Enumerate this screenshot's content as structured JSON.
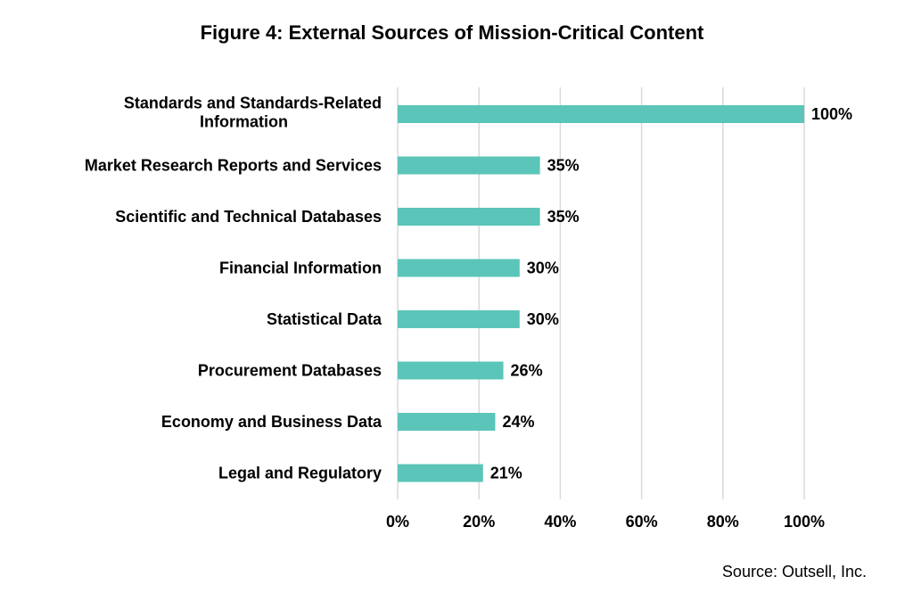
{
  "chart_data": {
    "type": "bar",
    "orientation": "horizontal",
    "title": "Figure 4: External Sources of Mission-Critical Content",
    "categories": [
      "Standards and Standards-Related Information",
      "Market Research Reports and Services",
      "Scientific and Technical Databases",
      "Financial Information",
      "Statistical Data",
      "Procurement Databases",
      "Economy and Business Data",
      "Legal and Regulatory"
    ],
    "category_lines": [
      [
        "Standards and Standards-Related",
        "Information"
      ],
      [
        "Market Research Reports and Services"
      ],
      [
        "Scientific and Technical Databases"
      ],
      [
        "Financial Information"
      ],
      [
        "Statistical Data"
      ],
      [
        "Procurement Databases"
      ],
      [
        "Economy and Business Data"
      ],
      [
        "Legal and Regulatory"
      ]
    ],
    "values": [
      100,
      35,
      35,
      30,
      30,
      26,
      24,
      21
    ],
    "value_labels": [
      "100%",
      "35%",
      "35%",
      "30%",
      "30%",
      "26%",
      "24%",
      "21%"
    ],
    "xlim": [
      0,
      100
    ],
    "xticks": [
      0,
      20,
      40,
      60,
      80,
      100
    ],
    "xtick_labels": [
      "0%",
      "20%",
      "40%",
      "60%",
      "80%",
      "100%"
    ],
    "xlabel": "",
    "ylabel": "",
    "grid": "vertical",
    "legend": "none",
    "bar_color": "#5bc5b9",
    "grid_color": "#d9d9d9"
  },
  "source": "Source: Outsell, Inc."
}
